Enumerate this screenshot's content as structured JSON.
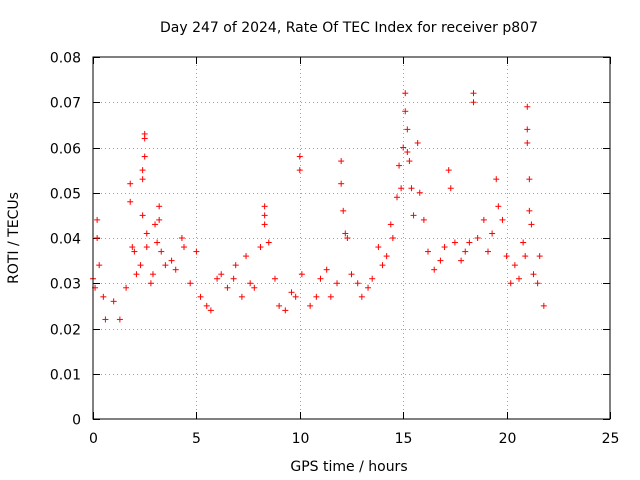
{
  "chart_data": {
    "type": "scatter",
    "title": "Day 247 of 2024, Rate Of TEC Index for receiver p807",
    "xlabel": "GPS time / hours",
    "ylabel": "ROTI / TECUs",
    "xlim": [
      0,
      25
    ],
    "ylim": [
      0,
      0.08
    ],
    "xticks": [
      0,
      5,
      10,
      15,
      20,
      25
    ],
    "yticks": [
      0,
      0.01,
      0.02,
      0.03,
      0.04,
      0.05,
      0.06,
      0.07,
      0.08
    ],
    "xtick_labels": [
      "0",
      "5",
      "10",
      "15",
      "20",
      "25"
    ],
    "ytick_labels": [
      "0",
      "0.01",
      "0.02",
      "0.03",
      "0.04",
      "0.05",
      "0.06",
      "0.07",
      "0.08"
    ],
    "grid": true,
    "marker": "+",
    "color": "#ff0000",
    "series": [
      {
        "name": "",
        "points": [
          [
            0.0,
            0.031
          ],
          [
            0.1,
            0.029
          ],
          [
            0.2,
            0.044
          ],
          [
            0.2,
            0.04
          ],
          [
            0.3,
            0.034
          ],
          [
            0.5,
            0.027
          ],
          [
            0.6,
            0.022
          ],
          [
            1.0,
            0.026
          ],
          [
            1.3,
            0.022
          ],
          [
            1.6,
            0.029
          ],
          [
            1.8,
            0.052
          ],
          [
            1.8,
            0.048
          ],
          [
            1.9,
            0.038
          ],
          [
            2.0,
            0.037
          ],
          [
            2.1,
            0.032
          ],
          [
            2.3,
            0.034
          ],
          [
            2.4,
            0.055
          ],
          [
            2.4,
            0.053
          ],
          [
            2.4,
            0.045
          ],
          [
            2.5,
            0.063
          ],
          [
            2.5,
            0.062
          ],
          [
            2.5,
            0.058
          ],
          [
            2.6,
            0.041
          ],
          [
            2.6,
            0.038
          ],
          [
            2.8,
            0.03
          ],
          [
            2.9,
            0.032
          ],
          [
            3.0,
            0.043
          ],
          [
            3.1,
            0.039
          ],
          [
            3.2,
            0.047
          ],
          [
            3.2,
            0.044
          ],
          [
            3.3,
            0.037
          ],
          [
            3.5,
            0.034
          ],
          [
            3.8,
            0.035
          ],
          [
            4.0,
            0.033
          ],
          [
            4.3,
            0.04
          ],
          [
            4.4,
            0.038
          ],
          [
            4.7,
            0.03
          ],
          [
            5.0,
            0.037
          ],
          [
            5.2,
            0.027
          ],
          [
            5.5,
            0.025
          ],
          [
            5.7,
            0.024
          ],
          [
            6.0,
            0.031
          ],
          [
            6.2,
            0.032
          ],
          [
            6.5,
            0.029
          ],
          [
            6.8,
            0.031
          ],
          [
            6.9,
            0.034
          ],
          [
            7.2,
            0.027
          ],
          [
            7.4,
            0.036
          ],
          [
            7.6,
            0.03
          ],
          [
            7.8,
            0.029
          ],
          [
            8.1,
            0.038
          ],
          [
            8.3,
            0.047
          ],
          [
            8.3,
            0.045
          ],
          [
            8.3,
            0.043
          ],
          [
            8.5,
            0.039
          ],
          [
            8.8,
            0.031
          ],
          [
            9.0,
            0.025
          ],
          [
            9.3,
            0.024
          ],
          [
            9.6,
            0.028
          ],
          [
            9.8,
            0.027
          ],
          [
            10.0,
            0.058
          ],
          [
            10.0,
            0.055
          ],
          [
            10.1,
            0.032
          ],
          [
            10.5,
            0.025
          ],
          [
            10.8,
            0.027
          ],
          [
            11.0,
            0.031
          ],
          [
            11.3,
            0.033
          ],
          [
            11.5,
            0.027
          ],
          [
            11.8,
            0.03
          ],
          [
            12.0,
            0.057
          ],
          [
            12.0,
            0.052
          ],
          [
            12.1,
            0.046
          ],
          [
            12.2,
            0.041
          ],
          [
            12.3,
            0.04
          ],
          [
            12.5,
            0.032
          ],
          [
            12.8,
            0.03
          ],
          [
            13.0,
            0.027
          ],
          [
            13.3,
            0.029
          ],
          [
            13.5,
            0.031
          ],
          [
            13.8,
            0.038
          ],
          [
            14.0,
            0.034
          ],
          [
            14.2,
            0.036
          ],
          [
            14.4,
            0.043
          ],
          [
            14.5,
            0.04
          ],
          [
            14.7,
            0.049
          ],
          [
            14.8,
            0.056
          ],
          [
            14.9,
            0.051
          ],
          [
            15.0,
            0.06
          ],
          [
            15.1,
            0.072
          ],
          [
            15.1,
            0.068
          ],
          [
            15.2,
            0.064
          ],
          [
            15.2,
            0.059
          ],
          [
            15.3,
            0.057
          ],
          [
            15.4,
            0.051
          ],
          [
            15.5,
            0.045
          ],
          [
            15.7,
            0.061
          ],
          [
            15.8,
            0.05
          ],
          [
            16.0,
            0.044
          ],
          [
            16.2,
            0.037
          ],
          [
            16.5,
            0.033
          ],
          [
            16.8,
            0.035
          ],
          [
            17.0,
            0.038
          ],
          [
            17.2,
            0.055
          ],
          [
            17.3,
            0.051
          ],
          [
            17.5,
            0.039
          ],
          [
            17.8,
            0.035
          ],
          [
            18.0,
            0.037
          ],
          [
            18.2,
            0.039
          ],
          [
            18.4,
            0.072
          ],
          [
            18.4,
            0.07
          ],
          [
            18.6,
            0.04
          ],
          [
            18.9,
            0.044
          ],
          [
            19.1,
            0.037
          ],
          [
            19.3,
            0.041
          ],
          [
            19.5,
            0.053
          ],
          [
            19.6,
            0.047
          ],
          [
            19.8,
            0.044
          ],
          [
            20.0,
            0.036
          ],
          [
            20.2,
            0.03
          ],
          [
            20.4,
            0.034
          ],
          [
            20.6,
            0.031
          ],
          [
            20.8,
            0.039
          ],
          [
            20.9,
            0.036
          ],
          [
            21.0,
            0.069
          ],
          [
            21.0,
            0.064
          ],
          [
            21.0,
            0.061
          ],
          [
            21.1,
            0.053
          ],
          [
            21.1,
            0.046
          ],
          [
            21.2,
            0.043
          ],
          [
            21.3,
            0.032
          ],
          [
            21.5,
            0.03
          ],
          [
            21.6,
            0.036
          ],
          [
            21.8,
            0.025
          ]
        ]
      }
    ]
  }
}
